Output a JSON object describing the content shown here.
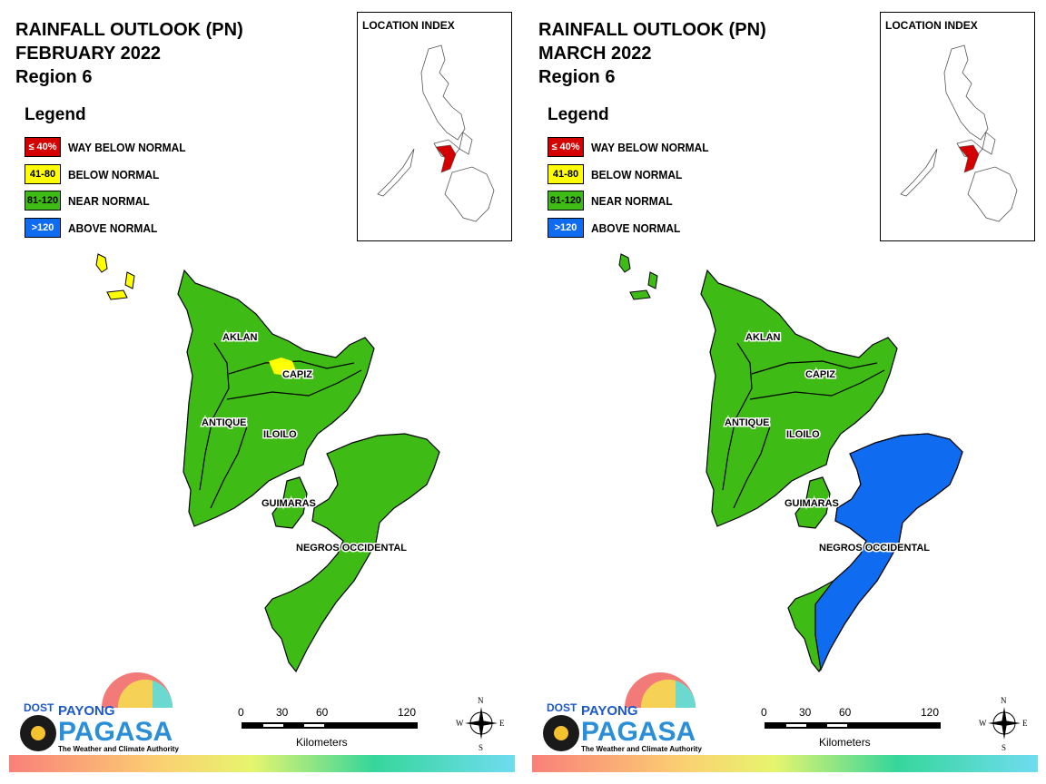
{
  "panels": [
    {
      "title_line1": "RAINFALL OUTLOOK (PN)",
      "title_line2": "FEBRUARY 2022",
      "title_line3": "Region 6",
      "capiz_patch": "below_normal",
      "negros_north": "near_normal",
      "negros_south": "near_normal"
    },
    {
      "title_line1": "RAINFALL OUTLOOK (PN)",
      "title_line2": "MARCH 2022",
      "title_line3": "Region 6",
      "capiz_patch": "none",
      "negros_north": "above_normal",
      "negros_south": "above_normal_and_near_normal"
    }
  ],
  "legend": {
    "heading": "Legend",
    "items": [
      {
        "range": "≤ 40%",
        "label": "WAY BELOW NORMAL",
        "color": "#d40000",
        "text_color": "#ffffff"
      },
      {
        "range": "41-80",
        "label": "BELOW NORMAL",
        "color": "#ffff00",
        "text_color": "#000000"
      },
      {
        "range": "81-120",
        "label": "NEAR NORMAL",
        "color": "#3fbb16",
        "text_color": "#000000"
      },
      {
        "range": ">120",
        "label": "ABOVE NORMAL",
        "color": "#0f6cf0",
        "text_color": "#ffffff"
      }
    ]
  },
  "inset": {
    "title": "LOCATION INDEX"
  },
  "provinces": {
    "aklan": "AKLAN",
    "capiz": "CAPIZ",
    "antique": "ANTIQUE",
    "iloilo": "ILOILO",
    "guimaras": "GUIMARAS",
    "negros": "NEGROS OCCIDENTAL"
  },
  "scale_bar": {
    "t0": "0",
    "t1": "30",
    "t2": "60",
    "t3": "120",
    "unit": "Kilometers"
  },
  "compass": {
    "n": "N",
    "s": "S",
    "e": "E",
    "w": "W"
  },
  "logo": {
    "dost": "DOST",
    "payong": "PAYONG",
    "pagasa": "PAGASA",
    "tagline": "The Weather and Climate Authority"
  },
  "colors": {
    "near_normal": "#3fbb16",
    "below_normal": "#ffff00",
    "above_normal": "#0f6cf0",
    "way_below": "#d40000"
  }
}
